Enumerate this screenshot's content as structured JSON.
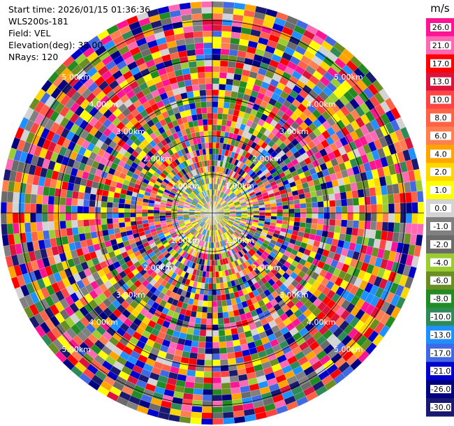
{
  "header": {
    "start_time": "Start time: 2026/01/15 01:36:36",
    "instrument": "WLS200s-181",
    "field": "Field: VEL",
    "elevation": "Elevation(deg): 35.00",
    "nrays": "NRays: 120"
  },
  "chart_data": {
    "type": "heatmap",
    "projection": "polar-ppi",
    "field": "VEL",
    "units": "m/s",
    "n_rays": 120,
    "range_rings_km": [
      1,
      2,
      3,
      4,
      5
    ],
    "ring_labels": [
      "1.00km",
      "2.00km",
      "3.00km",
      "4.00km",
      "5.00km"
    ],
    "max_range_km": 5.5,
    "colorbar": {
      "unit_label": "m/s",
      "ticks": [
        "26.0",
        "21.0",
        "17.0",
        "13.0",
        "10.0",
        "8.0",
        "6.0",
        "4.0",
        "2.0",
        "1.0",
        "0.0",
        "-1.0",
        "-2.0",
        "-4.0",
        "-6.0",
        "-8.0",
        "-10.0",
        "-13.0",
        "-17.0",
        "-21.0",
        "-26.0",
        "-30.0"
      ],
      "colors": [
        "#ff1493",
        "#ff69b4",
        "#ff0000",
        "#dc143c",
        "#ff4444",
        "#ff6347",
        "#ff7f50",
        "#ffa500",
        "#ffd700",
        "#ffff00",
        "#d3d3d3",
        "#808080",
        "#6b6b6b",
        "#9acd32",
        "#6b8e23",
        "#228b22",
        "#2e8b57",
        "#1e90ff",
        "#4169e1",
        "#0000cd",
        "#000080",
        "#191970"
      ]
    }
  }
}
